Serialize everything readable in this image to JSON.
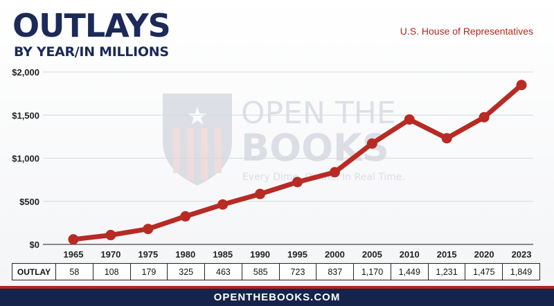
{
  "header": {
    "title": "OUTLAYS",
    "subtitle": "BY YEAR/IN MILLIONS",
    "source": "U.S. House of Representatives"
  },
  "watermark": {
    "line1": "OPEN THE",
    "line2": "BOOKS",
    "tagline": "Every Dime. Online. In Real Time.",
    "logo": "shield-star-logo"
  },
  "table": {
    "row_label": "OUTLAY",
    "values": [
      "58",
      "108",
      "179",
      "325",
      "463",
      "585",
      "723",
      "837",
      "1,170",
      "1,449",
      "1,231",
      "1,475",
      "1,849"
    ]
  },
  "footer": {
    "site": "OPENTHEBOOKS.COM"
  },
  "colors": {
    "navy": "#1b2a57",
    "red": "#b3261e",
    "line": "#b82a24"
  },
  "chart_data": {
    "type": "line",
    "categories": [
      "1965",
      "1970",
      "1975",
      "1980",
      "1985",
      "1990",
      "1995",
      "2000",
      "2005",
      "2010",
      "2015",
      "2020",
      "2023"
    ],
    "series": [
      {
        "values": [
          58,
          108,
          179,
          325,
          463,
          585,
          723,
          837,
          1170,
          1449,
          1231,
          1475,
          1849
        ]
      }
    ],
    "ylim": [
      0,
      2000
    ],
    "yticks": [
      "$0",
      "$500",
      "$1,000",
      "$1,500",
      "$2,000"
    ],
    "ytick_values": [
      0,
      500,
      1000,
      1500,
      2000
    ],
    "grid": true,
    "legend": "none"
  }
}
